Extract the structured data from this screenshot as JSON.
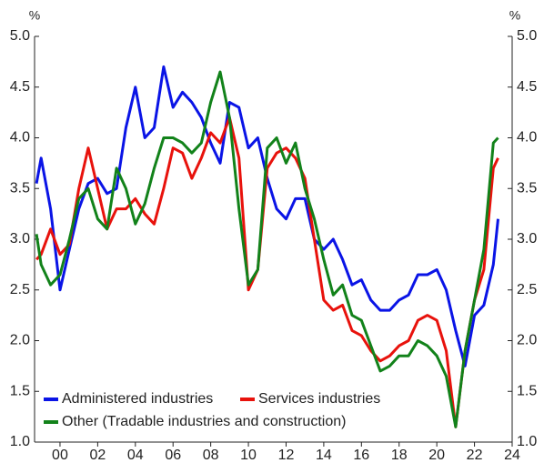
{
  "chart_data": {
    "type": "line",
    "y_label": "%",
    "y2_label": "%",
    "x": [
      1998.75,
      1999,
      1999.5,
      2000,
      2000.5,
      2001,
      2001.5,
      2002,
      2002.5,
      2003,
      2003.5,
      2004,
      2004.5,
      2005,
      2005.5,
      2006,
      2006.5,
      2007,
      2007.5,
      2008,
      2008.5,
      2009,
      2009.5,
      2010,
      2010.5,
      2011,
      2011.5,
      2012,
      2012.5,
      2013,
      2013.5,
      2014,
      2014.5,
      2015,
      2015.5,
      2016,
      2016.5,
      2017,
      2017.5,
      2018,
      2018.5,
      2019,
      2019.5,
      2020,
      2020.5,
      2021,
      2021.5,
      2022,
      2022.5,
      2023,
      2023.25
    ],
    "series": [
      {
        "name": "Administered industries",
        "color": "#0a14e6",
        "values": [
          3.55,
          3.8,
          3.3,
          2.5,
          2.9,
          3.3,
          3.55,
          3.6,
          3.45,
          3.5,
          4.1,
          4.5,
          4.0,
          4.1,
          4.7,
          4.3,
          4.45,
          4.35,
          4.2,
          3.95,
          3.75,
          4.35,
          4.3,
          3.9,
          4.0,
          3.6,
          3.3,
          3.2,
          3.4,
          3.4,
          3.0,
          2.9,
          3.0,
          2.8,
          2.55,
          2.6,
          2.4,
          2.3,
          2.3,
          2.4,
          2.45,
          2.65,
          2.65,
          2.7,
          2.5,
          2.1,
          1.75,
          2.25,
          2.35,
          2.75,
          3.2
        ]
      },
      {
        "name": "Services industries",
        "color": "#e8120c",
        "values": [
          2.8,
          2.85,
          3.1,
          2.85,
          2.95,
          3.5,
          3.9,
          3.5,
          3.1,
          3.3,
          3.3,
          3.4,
          3.25,
          3.15,
          3.5,
          3.9,
          3.85,
          3.6,
          3.8,
          4.05,
          3.95,
          4.2,
          3.8,
          2.5,
          2.7,
          3.7,
          3.85,
          3.9,
          3.8,
          3.6,
          3.0,
          2.4,
          2.3,
          2.35,
          2.1,
          2.05,
          1.9,
          1.8,
          1.85,
          1.95,
          2.0,
          2.2,
          2.25,
          2.2,
          1.9,
          1.15,
          1.9,
          2.4,
          2.7,
          3.7,
          3.8
        ]
      },
      {
        "name": "Other (Tradable industries and construction)",
        "color": "#12821a",
        "values": [
          3.05,
          2.75,
          2.55,
          2.65,
          3.0,
          3.4,
          3.5,
          3.2,
          3.1,
          3.7,
          3.5,
          3.15,
          3.35,
          3.7,
          4.0,
          4.0,
          3.95,
          3.85,
          3.95,
          4.35,
          4.65,
          4.2,
          3.3,
          2.55,
          2.7,
          3.9,
          4.0,
          3.75,
          3.95,
          3.5,
          3.2,
          2.8,
          2.45,
          2.55,
          2.25,
          2.2,
          1.95,
          1.7,
          1.75,
          1.85,
          1.85,
          2.0,
          1.95,
          1.85,
          1.65,
          1.15,
          1.9,
          2.4,
          2.9,
          3.95,
          4.0
        ]
      }
    ],
    "xlim": [
      1998.65,
      2024
    ],
    "xticks": [
      {
        "value": 2000,
        "label": "00"
      },
      {
        "value": 2002,
        "label": "02"
      },
      {
        "value": 2004,
        "label": "04"
      },
      {
        "value": 2006,
        "label": "06"
      },
      {
        "value": 2008,
        "label": "08"
      },
      {
        "value": 2010,
        "label": "10"
      },
      {
        "value": 2012,
        "label": "12"
      },
      {
        "value": 2014,
        "label": "14"
      },
      {
        "value": 2016,
        "label": "16"
      },
      {
        "value": 2018,
        "label": "18"
      },
      {
        "value": 2020,
        "label": "20"
      },
      {
        "value": 2022,
        "label": "22"
      },
      {
        "value": 2024,
        "label": "24"
      }
    ],
    "ylim": [
      1,
      5
    ],
    "yticks": [
      {
        "value": 1,
        "label": "1.0"
      },
      {
        "value": 1.5,
        "label": "1.5"
      },
      {
        "value": 2,
        "label": "2.0"
      },
      {
        "value": 2.5,
        "label": "2.5"
      },
      {
        "value": 3,
        "label": "3.0"
      },
      {
        "value": 3.5,
        "label": "3.5"
      },
      {
        "value": 4,
        "label": "4.0"
      },
      {
        "value": 4.5,
        "label": "4.5"
      },
      {
        "value": 5,
        "label": "5.0"
      }
    ],
    "y2lim": [
      1,
      5
    ],
    "y2ticks": [
      {
        "value": 1,
        "label": "1.0"
      },
      {
        "value": 1.5,
        "label": "1.5"
      },
      {
        "value": 2,
        "label": "2.0"
      },
      {
        "value": 2.5,
        "label": "2.5"
      },
      {
        "value": 3,
        "label": "3.0"
      },
      {
        "value": 3.5,
        "label": "3.5"
      },
      {
        "value": 4,
        "label": "4.0"
      },
      {
        "value": 4.5,
        "label": "4.5"
      },
      {
        "value": 5,
        "label": "5.0"
      }
    ]
  }
}
